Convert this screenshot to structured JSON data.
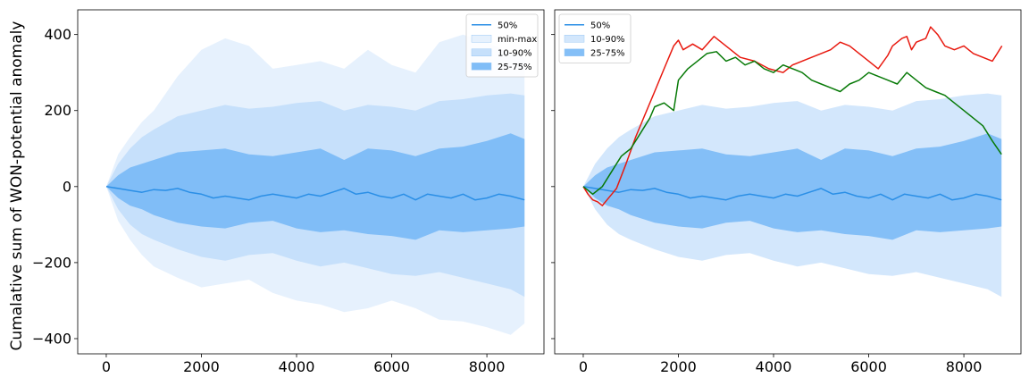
{
  "chart_data": [
    {
      "type": "area",
      "ylabel": "Cumalative sum of WON-potential anomaly",
      "xlim": [
        -600,
        9200
      ],
      "ylim": [
        -440,
        465
      ],
      "xticks": [
        0,
        2000,
        4000,
        6000,
        8000
      ],
      "yticks": [
        -400,
        -200,
        0,
        200,
        400
      ],
      "xtick_labels": [
        "0",
        "2000",
        "4000",
        "6000",
        "8000"
      ],
      "ytick_labels": [
        "−400",
        "−200",
        "0",
        "200",
        "400"
      ],
      "legend": {
        "placement": "top-right",
        "entries": [
          "50%",
          "min-max",
          "10-90%",
          "25-75%"
        ]
      },
      "bands": [
        {
          "name": "min-max",
          "color": "#e6f1fd",
          "x": [
            0,
            250,
            500,
            750,
            1000,
            1500,
            2000,
            2500,
            3000,
            3500,
            4000,
            4500,
            5000,
            5500,
            6000,
            6500,
            7000,
            7500,
            8000,
            8500,
            8790
          ],
          "upper": [
            0,
            85,
            130,
            170,
            200,
            290,
            360,
            390,
            370,
            310,
            320,
            330,
            310,
            360,
            320,
            300,
            380,
            400,
            380,
            350,
            340
          ],
          "lower": [
            0,
            -90,
            -140,
            -180,
            -210,
            -240,
            -265,
            -255,
            -245,
            -280,
            -300,
            -310,
            -330,
            -320,
            -300,
            -320,
            -350,
            -355,
            -370,
            -390,
            -360
          ]
        },
        {
          "name": "10-90%",
          "color": "#c6e0fb",
          "x": [
            0,
            250,
            500,
            750,
            1000,
            1500,
            2000,
            2500,
            3000,
            3500,
            4000,
            4500,
            5000,
            5500,
            6000,
            6500,
            7000,
            7500,
            8000,
            8500,
            8790
          ],
          "upper": [
            0,
            60,
            100,
            130,
            150,
            185,
            200,
            215,
            205,
            210,
            220,
            225,
            200,
            215,
            210,
            200,
            225,
            230,
            240,
            245,
            240
          ],
          "lower": [
            0,
            -60,
            -100,
            -125,
            -140,
            -165,
            -185,
            -195,
            -180,
            -175,
            -195,
            -210,
            -200,
            -215,
            -230,
            -235,
            -225,
            -240,
            -255,
            -270,
            -290
          ]
        },
        {
          "name": "25-75%",
          "color": "#80bdf7",
          "x": [
            0,
            250,
            500,
            750,
            1000,
            1500,
            2000,
            2500,
            3000,
            3500,
            4000,
            4500,
            5000,
            5500,
            6000,
            6500,
            7000,
            7500,
            8000,
            8500,
            8790
          ],
          "upper": [
            0,
            30,
            50,
            60,
            70,
            90,
            95,
            100,
            85,
            80,
            90,
            100,
            70,
            100,
            95,
            80,
            100,
            105,
            120,
            140,
            125
          ],
          "lower": [
            0,
            -30,
            -50,
            -60,
            -75,
            -95,
            -105,
            -110,
            -95,
            -90,
            -110,
            -120,
            -115,
            -125,
            -130,
            -140,
            -115,
            -120,
            -115,
            -110,
            -105
          ]
        }
      ],
      "series": [
        {
          "name": "50%",
          "color": "#2b8fe6",
          "x": [
            0,
            250,
            500,
            750,
            1000,
            1250,
            1500,
            1750,
            2000,
            2250,
            2500,
            2750,
            3000,
            3250,
            3500,
            3750,
            4000,
            4250,
            4500,
            4750,
            5000,
            5250,
            5500,
            5750,
            6000,
            6250,
            6500,
            6750,
            7000,
            7250,
            7500,
            7750,
            8000,
            8250,
            8500,
            8790
          ],
          "y": [
            0,
            -5,
            -10,
            -15,
            -8,
            -10,
            -5,
            -15,
            -20,
            -30,
            -25,
            -30,
            -35,
            -25,
            -20,
            -25,
            -30,
            -20,
            -25,
            -15,
            -5,
            -20,
            -15,
            -25,
            -30,
            -20,
            -35,
            -20,
            -25,
            -30,
            -20,
            -35,
            -30,
            -20,
            -25,
            -35
          ]
        }
      ]
    },
    {
      "type": "area",
      "xlim": [
        -600,
        9200
      ],
      "ylim": [
        -440,
        465
      ],
      "xticks": [
        0,
        2000,
        4000,
        6000,
        8000
      ],
      "yticks": [
        -400,
        -200,
        0,
        200,
        400
      ],
      "xtick_labels": [
        "0",
        "2000",
        "4000",
        "6000",
        "8000"
      ],
      "legend": {
        "placement": "top-left",
        "entries": [
          "50%",
          "10-90%",
          "25-75%"
        ]
      },
      "bands": [
        {
          "name": "10-90%",
          "color": "#d3e7fc",
          "x": [
            0,
            250,
            500,
            750,
            1000,
            1500,
            2000,
            2500,
            3000,
            3500,
            4000,
            4500,
            5000,
            5500,
            6000,
            6500,
            7000,
            7500,
            8000,
            8500,
            8790
          ],
          "upper": [
            0,
            60,
            100,
            130,
            150,
            185,
            200,
            215,
            205,
            210,
            220,
            225,
            200,
            215,
            210,
            200,
            225,
            230,
            240,
            245,
            240
          ],
          "lower": [
            0,
            -60,
            -100,
            -125,
            -140,
            -165,
            -185,
            -195,
            -180,
            -175,
            -195,
            -210,
            -200,
            -215,
            -230,
            -235,
            -225,
            -240,
            -255,
            -270,
            -290
          ]
        },
        {
          "name": "25-75%",
          "color": "#84bff7",
          "x": [
            0,
            250,
            500,
            750,
            1000,
            1500,
            2000,
            2500,
            3000,
            3500,
            4000,
            4500,
            5000,
            5500,
            6000,
            6500,
            7000,
            7500,
            8000,
            8500,
            8790
          ],
          "upper": [
            0,
            30,
            50,
            60,
            70,
            90,
            95,
            100,
            85,
            80,
            90,
            100,
            70,
            100,
            95,
            80,
            100,
            105,
            120,
            140,
            125
          ],
          "lower": [
            0,
            -30,
            -50,
            -60,
            -75,
            -95,
            -105,
            -110,
            -95,
            -90,
            -110,
            -120,
            -115,
            -125,
            -130,
            -140,
            -115,
            -120,
            -115,
            -110,
            -105
          ]
        }
      ],
      "series": [
        {
          "name": "50%",
          "color": "#2b8fe6",
          "x": [
            0,
            250,
            500,
            750,
            1000,
            1250,
            1500,
            1750,
            2000,
            2250,
            2500,
            2750,
            3000,
            3250,
            3500,
            3750,
            4000,
            4250,
            4500,
            4750,
            5000,
            5250,
            5500,
            5750,
            6000,
            6250,
            6500,
            6750,
            7000,
            7250,
            7500,
            7750,
            8000,
            8250,
            8500,
            8790
          ],
          "y": [
            0,
            -5,
            -10,
            -15,
            -8,
            -10,
            -5,
            -15,
            -20,
            -30,
            -25,
            -30,
            -35,
            -25,
            -20,
            -25,
            -30,
            -20,
            -25,
            -15,
            -5,
            -20,
            -15,
            -25,
            -30,
            -20,
            -35,
            -20,
            -25,
            -30,
            -20,
            -35,
            -30,
            -20,
            -25,
            -35
          ]
        },
        {
          "color": "#e8190f",
          "x": [
            0,
            100,
            200,
            300,
            400,
            500,
            600,
            700,
            900,
            1100,
            1300,
            1500,
            1700,
            1900,
            2000,
            2100,
            2300,
            2500,
            2750,
            2900,
            3100,
            3300,
            3600,
            3900,
            4200,
            4400,
            4600,
            4800,
            5000,
            5200,
            5400,
            5600,
            5800,
            6000,
            6200,
            6400,
            6500,
            6700,
            6800,
            6900,
            7000,
            7200,
            7300,
            7450,
            7600,
            7800,
            8000,
            8200,
            8400,
            8600,
            8700,
            8800
          ],
          "y": [
            0,
            -20,
            -35,
            -40,
            -50,
            -35,
            -20,
            -5,
            60,
            130,
            190,
            250,
            310,
            370,
            385,
            360,
            375,
            360,
            395,
            380,
            360,
            340,
            330,
            310,
            300,
            320,
            330,
            340,
            350,
            360,
            380,
            370,
            350,
            330,
            310,
            345,
            370,
            390,
            395,
            360,
            380,
            390,
            420,
            400,
            370,
            360,
            370,
            350,
            340,
            330,
            350,
            370
          ]
        },
        {
          "color": "#087a08",
          "x": [
            0,
            100,
            200,
            300,
            400,
            500,
            600,
            700,
            800,
            900,
            1000,
            1200,
            1400,
            1500,
            1700,
            1900,
            2000,
            2200,
            2400,
            2600,
            2800,
            3000,
            3200,
            3400,
            3600,
            3800,
            4000,
            4200,
            4400,
            4600,
            4800,
            5000,
            5200,
            5400,
            5600,
            5800,
            6000,
            6200,
            6400,
            6600,
            6800,
            7000,
            7200,
            7400,
            7600,
            7800,
            8000,
            8200,
            8400,
            8600,
            8790
          ],
          "y": [
            0,
            -10,
            -20,
            -10,
            0,
            20,
            40,
            60,
            80,
            90,
            100,
            140,
            180,
            210,
            220,
            200,
            280,
            310,
            330,
            350,
            355,
            330,
            340,
            320,
            330,
            310,
            300,
            320,
            310,
            300,
            280,
            270,
            260,
            250,
            270,
            280,
            300,
            290,
            280,
            270,
            300,
            280,
            260,
            250,
            240,
            220,
            200,
            180,
            160,
            120,
            85
          ]
        }
      ]
    }
  ]
}
